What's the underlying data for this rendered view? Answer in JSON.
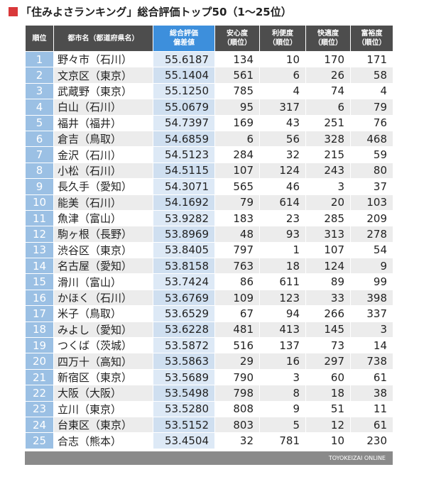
{
  "title": "「住みよさランキング」総合評価トップ50（1〜25位）",
  "table": {
    "header": [
      [
        "順位"
      ],
      [
        "都市名（都道府県名）"
      ],
      [
        "総合評価",
        "偏差値"
      ],
      [
        "安心度",
        "（順位）"
      ],
      [
        "利便度",
        "（順位）"
      ],
      [
        "快適度",
        "（順位）"
      ],
      [
        "富裕度",
        "（順位）"
      ]
    ],
    "rows": [
      [
        1,
        "野々市（石川）",
        "55.6187",
        134,
        10,
        170,
        171
      ],
      [
        2,
        "文京区（東京）",
        "55.1404",
        561,
        6,
        26,
        58
      ],
      [
        3,
        "武蔵野（東京）",
        "55.1250",
        785,
        4,
        74,
        4
      ],
      [
        4,
        "白山（石川）",
        "55.0679",
        95,
        317,
        6,
        79
      ],
      [
        5,
        "福井（福井）",
        "54.7397",
        169,
        43,
        251,
        76
      ],
      [
        6,
        "倉吉（鳥取）",
        "54.6859",
        6,
        56,
        328,
        468
      ],
      [
        7,
        "金沢（石川）",
        "54.5123",
        284,
        32,
        215,
        59
      ],
      [
        8,
        "小松（石川）",
        "54.5115",
        107,
        124,
        243,
        80
      ],
      [
        9,
        "長久手（愛知）",
        "54.3071",
        565,
        46,
        3,
        37
      ],
      [
        10,
        "能美（石川）",
        "54.1692",
        79,
        614,
        20,
        103
      ],
      [
        11,
        "魚津（富山）",
        "53.9282",
        183,
        23,
        285,
        209
      ],
      [
        12,
        "駒ヶ根（長野）",
        "53.8969",
        48,
        93,
        313,
        278
      ],
      [
        13,
        "渋谷区（東京）",
        "53.8405",
        797,
        1,
        107,
        54
      ],
      [
        14,
        "名古屋（愛知）",
        "53.8158",
        763,
        18,
        124,
        9
      ],
      [
        15,
        "滑川（富山）",
        "53.7424",
        86,
        611,
        89,
        99
      ],
      [
        16,
        "かほく（石川）",
        "53.6769",
        109,
        123,
        33,
        398
      ],
      [
        17,
        "米子（鳥取）",
        "53.6529",
        67,
        94,
        266,
        337
      ],
      [
        18,
        "みよし（愛知）",
        "53.6228",
        481,
        413,
        145,
        3
      ],
      [
        19,
        "つくば（茨城）",
        "53.5872",
        516,
        137,
        73,
        14
      ],
      [
        20,
        "四万十（高知）",
        "53.5863",
        29,
        16,
        297,
        738
      ],
      [
        21,
        "新宿区（東京）",
        "53.5689",
        790,
        3,
        60,
        61
      ],
      [
        22,
        "大阪（大阪）",
        "53.5498",
        798,
        8,
        18,
        38
      ],
      [
        23,
        "立川（東京）",
        "53.5280",
        808,
        9,
        51,
        11
      ],
      [
        24,
        "台東区（東京）",
        "53.5152",
        803,
        5,
        12,
        61
      ],
      [
        25,
        "合志（熊本）",
        "53.4504",
        32,
        781,
        10,
        230
      ]
    ]
  },
  "footer": "TOYOKEIZAI ONLINE"
}
